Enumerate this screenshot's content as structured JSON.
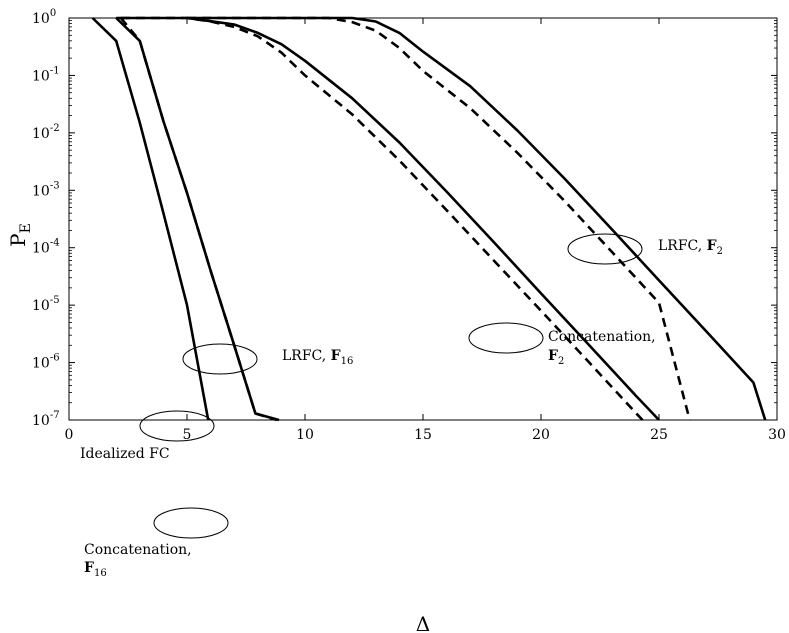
{
  "chart_data": {
    "type": "line",
    "xlabel": "Δ",
    "ylabel": {
      "main": "P",
      "sub": "E"
    },
    "xlim": [
      0,
      30
    ],
    "ylim": [
      1e-07,
      1
    ],
    "yscale": "log",
    "grid": false,
    "x_ticks": [
      {
        "value": 0,
        "label": "0"
      },
      {
        "value": 5,
        "label": "5"
      },
      {
        "value": 10,
        "label": "10"
      },
      {
        "value": 15,
        "label": "15"
      },
      {
        "value": 20,
        "label": "20"
      },
      {
        "value": 25,
        "label": "25"
      },
      {
        "value": 30,
        "label": "30"
      }
    ],
    "y_ticks": [
      {
        "value": 1,
        "base": "10",
        "exp": "0"
      },
      {
        "value": 0.1,
        "base": "10",
        "exp": "-1"
      },
      {
        "value": 0.01,
        "base": "10",
        "exp": "-2"
      },
      {
        "value": 0.001,
        "base": "10",
        "exp": "-3"
      },
      {
        "value": 0.0001,
        "base": "10",
        "exp": "-4"
      },
      {
        "value": 1e-05,
        "base": "10",
        "exp": "-5"
      },
      {
        "value": 1e-06,
        "base": "10",
        "exp": "-6"
      },
      {
        "value": 1e-07,
        "base": "10",
        "exp": "-7"
      }
    ],
    "series": [
      {
        "style": "solid",
        "points": [
          [
            1,
            1
          ],
          [
            2,
            0.4
          ],
          [
            3,
            0.015
          ],
          [
            4,
            0.0004
          ],
          [
            5,
            1e-05
          ],
          [
            5.9,
            1e-07
          ]
        ]
      },
      {
        "style": "solid",
        "points": [
          [
            2,
            1
          ],
          [
            3,
            0.4
          ],
          [
            4,
            0.016
          ],
          [
            5,
            0.0009
          ],
          [
            6,
            4e-05
          ],
          [
            7,
            2e-06
          ],
          [
            7.9,
            1.3e-07
          ],
          [
            8.9,
            1e-07
          ]
        ]
      },
      {
        "style": "dashed",
        "points": [
          [
            2.2,
            1
          ],
          [
            3,
            0.4
          ],
          [
            4,
            0.016
          ],
          [
            5,
            0.0009
          ],
          [
            6,
            4e-05
          ],
          [
            7,
            2e-06
          ],
          [
            7.9,
            1.3e-07
          ],
          [
            8.8,
            1e-07
          ]
        ]
      },
      {
        "style": "dashed",
        "points": [
          [
            2.2,
            1
          ],
          [
            5,
            1
          ],
          [
            6,
            0.87
          ],
          [
            7,
            0.7
          ],
          [
            8,
            0.48
          ],
          [
            9,
            0.25
          ],
          [
            10,
            0.1
          ],
          [
            12,
            0.021
          ],
          [
            14,
            0.0033
          ],
          [
            16,
            0.00045
          ],
          [
            18,
            6e-05
          ],
          [
            20,
            8e-06
          ],
          [
            22,
            1.05e-06
          ],
          [
            24,
            1.35e-07
          ],
          [
            24.3,
            1e-07
          ]
        ]
      },
      {
        "style": "solid",
        "points": [
          [
            2,
            1
          ],
          [
            5,
            1
          ],
          [
            6,
            0.88
          ],
          [
            7,
            0.77
          ],
          [
            8,
            0.55
          ],
          [
            9,
            0.35
          ],
          [
            10,
            0.18
          ],
          [
            12,
            0.04
          ],
          [
            14,
            0.0068
          ],
          [
            16,
            0.00095
          ],
          [
            18,
            0.000125
          ],
          [
            20,
            1.6e-05
          ],
          [
            22,
            2.1e-06
          ],
          [
            24,
            2.7e-07
          ],
          [
            25,
            1e-07
          ]
        ]
      },
      {
        "style": "dashed",
        "points": [
          [
            5,
            1
          ],
          [
            11,
            1
          ],
          [
            12,
            0.85
          ],
          [
            13,
            0.6
          ],
          [
            14,
            0.3
          ],
          [
            15,
            0.12
          ],
          [
            17,
            0.027
          ],
          [
            19,
            0.0045
          ],
          [
            21,
            0.00065
          ],
          [
            23,
            8.5e-05
          ],
          [
            25,
            1.1e-05
          ],
          [
            26.3,
            1e-07
          ]
        ]
      },
      {
        "style": "solid",
        "points": [
          [
            5,
            1
          ],
          [
            12,
            1
          ],
          [
            13,
            0.87
          ],
          [
            14,
            0.55
          ],
          [
            15,
            0.26
          ],
          [
            17,
            0.065
          ],
          [
            19,
            0.011
          ],
          [
            21,
            0.0016
          ],
          [
            23,
            0.00021
          ],
          [
            25,
            2.7e-05
          ],
          [
            27,
            3.5e-06
          ],
          [
            29,
            4.5e-07
          ],
          [
            29.5,
            1e-07
          ]
        ]
      }
    ],
    "annotations": [
      {
        "text": "Idealized FC",
        "bold": "",
        "subscript": "",
        "line2": "",
        "line2_bold": "",
        "line2_sub": ""
      },
      {
        "text": "LRFC, ",
        "bold": "F",
        "subscript": "16",
        "line2": "",
        "line2_bold": "",
        "line2_sub": ""
      },
      {
        "text": "Concatenation,",
        "bold": "",
        "subscript": "",
        "line2": "",
        "line2_bold": "F",
        "line2_sub": "16"
      },
      {
        "text": "LRFC, ",
        "bold": "F",
        "subscript": "2",
        "line2": "",
        "line2_bold": "",
        "line2_sub": ""
      },
      {
        "text": "Concatenation,",
        "bold": "",
        "subscript": "",
        "line2": "",
        "line2_bold": "F",
        "line2_sub": "2"
      }
    ]
  }
}
